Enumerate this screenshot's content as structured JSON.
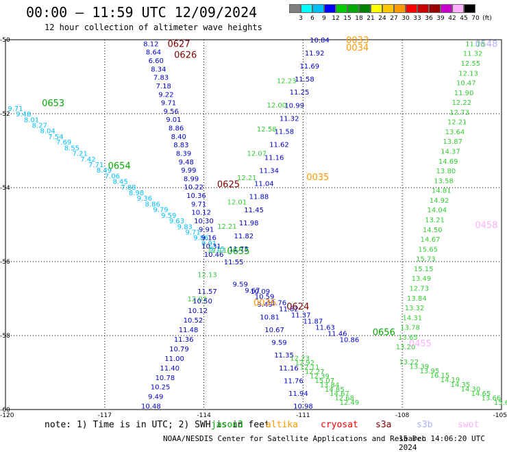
{
  "header": {
    "title": "00:00 – 11:59 UTC 12/09/2024",
    "subtitle": "12 hour collection of altimeter wave heights"
  },
  "legend": {
    "ticks": [
      "3",
      "6",
      "9",
      "12",
      "15",
      "18",
      "21",
      "24",
      "27",
      "30",
      "33",
      "36",
      "39",
      "42",
      "45",
      "70",
      "(ft)"
    ],
    "colors": [
      "#808080",
      "#00ffff",
      "#00bfff",
      "#0000ff",
      "#00cc00",
      "#00aa00",
      "#008000",
      "#ffff00",
      "#ffc800",
      "#ff9900",
      "#ff0000",
      "#cc0000",
      "#990000",
      "#cc00cc",
      "#ffb0ff",
      "#000000"
    ]
  },
  "axes": {
    "lon_labels": [
      "-120",
      "-117",
      "-114",
      "-111",
      "-108",
      "-105"
    ],
    "lat_labels": [
      "-50",
      "-52",
      "-54",
      "-56",
      "-58",
      "-60"
    ]
  },
  "satellites": [
    {
      "name": "jason3",
      "color": "#00aa00"
    },
    {
      "name": "altika",
      "color": "#ff9900"
    },
    {
      "name": "cryosat",
      "color": "#ff0000"
    },
    {
      "name": "s3a",
      "color": "#800000"
    },
    {
      "name": "s3b",
      "color": "#b0b0ff"
    },
    {
      "name": "swot",
      "color": "#ffb0ff"
    }
  ],
  "footer": {
    "note": "note: 1) Time is in UTC; 2) SWH is in feet",
    "credit": "NOAA/NESDIS Center for Satellite Applications and Research",
    "timestamp": "15 Dec 14:06:20 UTC 2024"
  },
  "map_data": {
    "time_labels": [
      {
        "text": "0627",
        "color": "#800000",
        "lon": -115.1,
        "lat": -50.1
      },
      {
        "text": "0626",
        "color": "#800000",
        "lon": -114.9,
        "lat": -50.4
      },
      {
        "text": "0653",
        "color": "#00aa00",
        "lon": -118.9,
        "lat": -51.7
      },
      {
        "text": "0654",
        "color": "#00aa00",
        "lon": -116.9,
        "lat": -53.4
      },
      {
        "text": "0625",
        "color": "#800000",
        "lon": -113.6,
        "lat": -53.9
      },
      {
        "text": "0035",
        "color": "#ff9900",
        "lon": -110.9,
        "lat": -53.7
      },
      {
        "text": "0033",
        "color": "#ff9900",
        "lon": -109.7,
        "lat": -50.0
      },
      {
        "text": "0034",
        "color": "#ff9900",
        "lon": -109.7,
        "lat": -50.2
      },
      {
        "text": "0548",
        "color": "#b0b0ff",
        "lon": -105.8,
        "lat": -50.1
      },
      {
        "text": "0458",
        "color": "#ffb0ff",
        "lon": -105.8,
        "lat": -55.0
      },
      {
        "text": "0655",
        "color": "#00aa00",
        "lon": -113.3,
        "lat": -55.7
      },
      {
        "text": "0036",
        "color": "#ff9900",
        "lon": -112.5,
        "lat": -57.1
      },
      {
        "text": "0624",
        "color": "#800000",
        "lon": -111.5,
        "lat": -57.2
      },
      {
        "text": "0656",
        "color": "#00aa00",
        "lon": -108.9,
        "lat": -57.9
      },
      {
        "text": "0455",
        "color": "#ffb0ff",
        "lon": -107.8,
        "lat": -58.2
      }
    ],
    "tracks": [
      {
        "name": "jason3-a",
        "color": "#00bfff",
        "values": [
          "9.71",
          "9.48",
          "8.01",
          "8.27",
          "8.04",
          "7.54",
          "7.69",
          "8.55",
          "7.21",
          "7.42",
          "7.71",
          "8.49",
          "7.06",
          "8.45",
          "7.88",
          "8.98",
          "9.36",
          "8.86",
          "9.79",
          "9.59",
          "9.63",
          "9.83",
          "9.71",
          "9.86",
          "9.91",
          "9.15"
        ],
        "lon0": -119.7,
        "lat0": -51.85,
        "lon1": -113.6,
        "lat1": -55.65
      },
      {
        "name": "s3a-a",
        "color": "#0000cc",
        "values": [
          "8.12",
          "8.64",
          "6.60",
          "8.34",
          "7.83",
          "7.18",
          "9.22",
          "9.71",
          "9.56",
          "9.01",
          "8.86",
          "8.40",
          "8.83",
          "8.39",
          "9.48",
          "9.99",
          "8.99",
          "10.22",
          "10.36",
          "9.71",
          "10.12",
          "10.30",
          "9.91",
          "9.16",
          "10.31",
          "10.46"
        ],
        "lon0": -115.6,
        "lat0": -50.1,
        "lon1": -113.7,
        "lat1": -55.8
      },
      {
        "name": "altika-b",
        "color": "#0000cc",
        "values": [
          "10.84",
          "11.92",
          "11.69",
          "11.58",
          "11.25",
          "10.99",
          "11.32",
          "11.58",
          "11.62",
          "11.16",
          "11.34",
          "11.04",
          "11.88",
          "11.45",
          "11.98",
          "11.82",
          "11.75",
          "11.55"
        ],
        "lon0": -110.5,
        "lat0": -50.0,
        "lon1": -113.1,
        "lat1": -56.0
      },
      {
        "name": "jason3-b",
        "color": "#33cc33",
        "values": [
          "12.23",
          "12.00",
          "12.58",
          "12.07",
          "12.21",
          "12.01",
          "12.21",
          "12.11",
          "12.13",
          "12.03"
        ],
        "lon0": -111.5,
        "lat0": -51.1,
        "lon1": -114.2,
        "lat1": -57.0
      },
      {
        "name": "cryosat-c",
        "color": "#0000cc",
        "values": [
          "11.57",
          "10.50",
          "10.12",
          "10.52",
          "11.48",
          "11.36",
          "10.79",
          "11.00",
          "11.40",
          "10.78",
          "10.25",
          "9.49",
          "10.48"
        ],
        "lon0": -113.9,
        "lat0": -56.8,
        "lon1": -115.6,
        "lat1": -59.9
      },
      {
        "name": "s3a-b",
        "color": "#0000cc",
        "values": [
          "9.59",
          "9.67",
          "10.59",
          "11.76",
          "11.82",
          "11.37",
          "11.87",
          "11.63",
          "11.46",
          "10.86"
        ],
        "lon0": -112.9,
        "lat0": -56.6,
        "lon1": -109.6,
        "lat1": -58.1
      },
      {
        "name": "altika-c",
        "color": "#0000cc",
        "values": [
          "10.09",
          "9.49",
          "10.81",
          "10.67",
          "9.59",
          "11.35",
          "11.16",
          "11.76",
          "11.94",
          "10.98"
        ],
        "lon0": -112.3,
        "lat0": -56.8,
        "lon1": -111.0,
        "lat1": -59.9
      },
      {
        "name": "jason3-c",
        "color": "#33cc33",
        "values": [
          "12.23",
          "12.92",
          "12.11",
          "12.27",
          "12.39",
          "15.07",
          "13.84",
          "14.85",
          "14.67",
          "12.68",
          "12.49"
        ],
        "lon0": -111.1,
        "lat0": -58.6,
        "lon1": -109.6,
        "lat1": -59.8
      },
      {
        "name": "swot-right",
        "color": "#33cc33",
        "values": [
          "11.18",
          "11.32",
          "12.55",
          "12.13",
          "10.47",
          "11.90",
          "12.22",
          "12.73",
          "12.21",
          "13.64",
          "13.87",
          "14.37",
          "14.69",
          "13.80",
          "13.58",
          "14.81",
          "14.92",
          "14.04",
          "13.21",
          "14.50",
          "14.67",
          "15.65",
          "15.73",
          "15.15",
          "13.49",
          "12.73",
          "13.84",
          "13.32",
          "14.31",
          "13.78",
          "13.65",
          "13.20"
        ],
        "lon0": -105.8,
        "lat0": -50.1,
        "lon1": -107.9,
        "lat1": -58.3
      },
      {
        "name": "swot-lower",
        "color": "#33cc33",
        "values": [
          "13.22",
          "13.39",
          "13.95",
          "16.15",
          "14.19",
          "14.35",
          "14.30",
          "14.65",
          "13.66",
          "15.6"
        ],
        "lon0": -107.8,
        "lat0": -58.7,
        "lon1": -105.0,
        "lat1": -59.8
      }
    ]
  }
}
